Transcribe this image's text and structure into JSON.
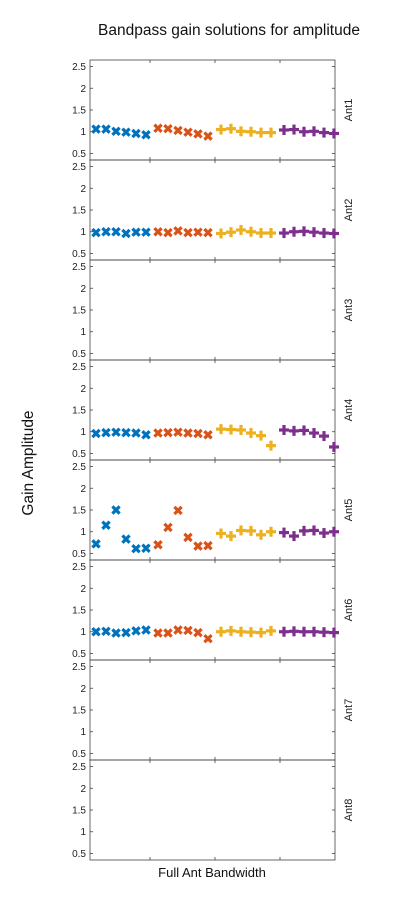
{
  "chart_data": {
    "type": "scatter",
    "title": "Bandpass gain solutions for amplitude",
    "xlabel": "Full Ant Bandwidth",
    "ylabel": "Gain Amplitude",
    "ylim": [
      0.35,
      2.65
    ],
    "yticks": [
      "0.5",
      "1",
      "1.5",
      "2",
      "2.5"
    ],
    "ytick_values": [
      0.5,
      1,
      1.5,
      2,
      2.5
    ],
    "grid": false,
    "legend": "none",
    "colors": [
      "#0072bd",
      "#d95319",
      "#edb120",
      "#7e2f8e"
    ],
    "markers": [
      "x",
      "x",
      "+",
      "+"
    ],
    "panels": [
      {
        "label": "Ant1",
        "series": [
          [
            1.06,
            1.06,
            1.01,
            0.99,
            0.96,
            0.93
          ],
          [
            1.08,
            1.07,
            1.03,
            0.99,
            0.95,
            0.9
          ],
          [
            1.05,
            1.07,
            1.01,
            1.0,
            0.98,
            0.98
          ],
          [
            1.04,
            1.05,
            1.0,
            1.01,
            0.98,
            0.96
          ]
        ]
      },
      {
        "label": "Ant2",
        "series": [
          [
            0.98,
            1.0,
            1.0,
            0.96,
            0.99,
            0.99
          ],
          [
            1.0,
            0.98,
            1.02,
            0.98,
            0.99,
            0.98
          ],
          [
            0.96,
            0.99,
            1.04,
            1.0,
            0.97,
            0.97
          ],
          [
            0.97,
            1.0,
            1.01,
            0.99,
            0.97,
            0.96
          ]
        ]
      },
      {
        "label": "Ant3",
        "series": [
          [],
          [],
          [],
          []
        ]
      },
      {
        "label": "Ant4",
        "series": [
          [
            0.96,
            0.98,
            0.99,
            0.98,
            0.97,
            0.93
          ],
          [
            0.97,
            0.98,
            0.99,
            0.97,
            0.96,
            0.93
          ],
          [
            1.06,
            1.05,
            1.04,
            0.97,
            0.91,
            0.68
          ],
          [
            1.04,
            1.02,
            1.03,
            0.97,
            0.9,
            0.65
          ]
        ]
      },
      {
        "label": "Ant5",
        "series": [
          [
            0.72,
            1.15,
            1.5,
            0.83,
            0.61,
            0.62
          ],
          [
            0.7,
            1.1,
            1.49,
            0.87,
            0.67,
            0.68
          ],
          [
            0.96,
            0.9,
            1.03,
            1.02,
            0.93,
            1.0
          ],
          [
            0.98,
            0.9,
            1.02,
            1.03,
            0.97,
            1.0
          ]
        ]
      },
      {
        "label": "Ant6",
        "series": [
          [
            1.0,
            1.01,
            0.97,
            0.98,
            1.02,
            1.04
          ],
          [
            0.97,
            0.97,
            1.04,
            1.03,
            0.98,
            0.84
          ],
          [
            1.0,
            1.02,
            1.0,
            0.99,
            0.98,
            1.02
          ],
          [
            1.0,
            1.01,
            1.0,
            1.0,
            0.99,
            0.98
          ]
        ]
      },
      {
        "label": "Ant7",
        "series": [
          [],
          [],
          [],
          []
        ]
      },
      {
        "label": "Ant8",
        "series": [
          [],
          [],
          [],
          []
        ]
      }
    ]
  }
}
